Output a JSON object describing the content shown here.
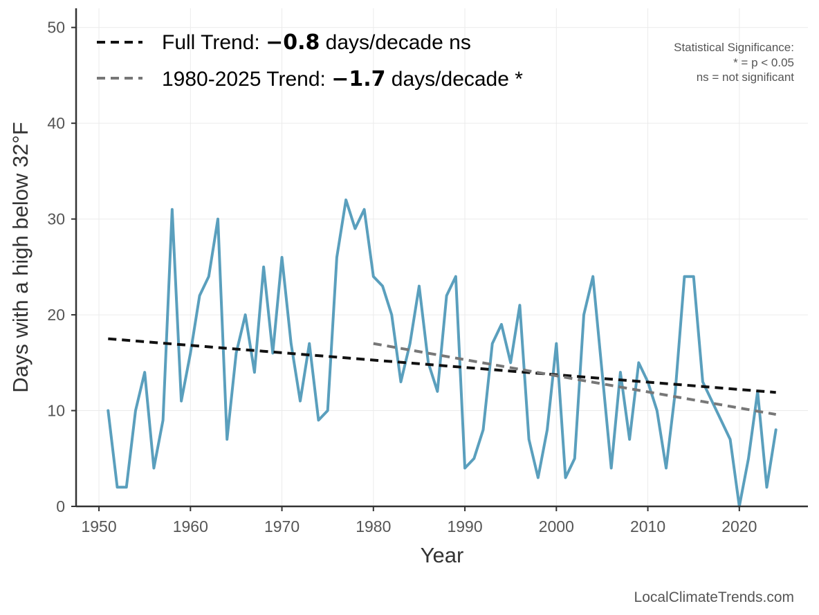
{
  "chart_data": {
    "type": "line",
    "xlabel": "Year",
    "ylabel": "Days with a high below 32°F",
    "xlim": [
      1947.5,
      2027.5
    ],
    "ylim": [
      0,
      52
    ],
    "xticks": [
      1950,
      1960,
      1970,
      1980,
      1990,
      2000,
      2010,
      2020
    ],
    "yticks": [
      0,
      10,
      20,
      30,
      40,
      50
    ],
    "grid": true,
    "series": [
      {
        "name": "Days with a high below 32°F",
        "color": "#5a9fbd",
        "x": [
          1951,
          1952,
          1953,
          1954,
          1955,
          1956,
          1957,
          1958,
          1959,
          1960,
          1961,
          1962,
          1963,
          1964,
          1965,
          1966,
          1967,
          1968,
          1969,
          1970,
          1971,
          1972,
          1973,
          1974,
          1975,
          1976,
          1977,
          1978,
          1979,
          1980,
          1981,
          1982,
          1983,
          1984,
          1985,
          1986,
          1987,
          1988,
          1989,
          1990,
          1991,
          1992,
          1993,
          1994,
          1995,
          1996,
          1997,
          1998,
          1999,
          2000,
          2001,
          2002,
          2003,
          2004,
          2005,
          2006,
          2007,
          2008,
          2009,
          2010,
          2011,
          2012,
          2013,
          2014,
          2015,
          2016,
          2017,
          2018,
          2019,
          2020,
          2021,
          2022,
          2023,
          2024
        ],
        "values": [
          10,
          2,
          2,
          10,
          14,
          4,
          9,
          31,
          11,
          16,
          22,
          24,
          30,
          7,
          16,
          20,
          14,
          25,
          16,
          26,
          17,
          11,
          17,
          9,
          10,
          26,
          32,
          29,
          31,
          24,
          23,
          20,
          13,
          17,
          23,
          15,
          12,
          22,
          24,
          4,
          5,
          8,
          17,
          19,
          15,
          21,
          7,
          3,
          8,
          17,
          3,
          5,
          20,
          24,
          14,
          4,
          14,
          7,
          15,
          13,
          10,
          4,
          12,
          24,
          24,
          13,
          11,
          9,
          7,
          0,
          5,
          12,
          2,
          8
        ]
      }
    ],
    "trends": [
      {
        "name": "Full Trend",
        "color": "#111111",
        "x": [
          1951,
          2024
        ],
        "values": [
          17.5,
          11.9
        ]
      },
      {
        "name": "1980-2025 Trend",
        "color": "#777777",
        "x": [
          1980,
          2024
        ],
        "values": [
          17.0,
          9.6
        ]
      }
    ],
    "legend": {
      "position": "top-left",
      "entries": [
        {
          "prefix": "Full Trend: ",
          "value": "−0.8",
          "suffix": " days/decade ns",
          "color": "#111111"
        },
        {
          "prefix": "1980-2025 Trend: ",
          "value": "−1.7",
          "suffix": " days/decade *",
          "color": "#777777"
        }
      ]
    },
    "annotations": {
      "significance": [
        "Statistical Significance:",
        "* = p < 0.05",
        "ns = not significant"
      ],
      "source": "LocalClimateTrends.com"
    }
  }
}
